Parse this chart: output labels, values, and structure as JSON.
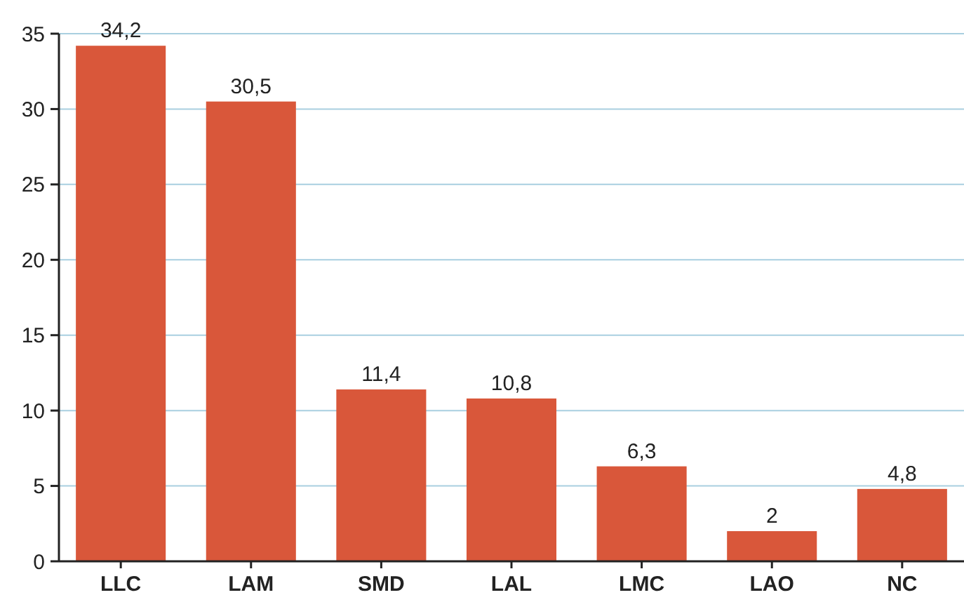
{
  "chart_data": {
    "type": "bar",
    "categories": [
      "LLC",
      "LAM",
      "SMD",
      "LAL",
      "LMC",
      "LAO",
      "NC"
    ],
    "values": [
      34.2,
      30.5,
      11.4,
      10.8,
      6.3,
      2,
      4.8
    ],
    "value_labels": [
      "34,2",
      "30,5",
      "11,4",
      "10,8",
      "6,3",
      "2",
      "4,8"
    ],
    "color": "#d9573a",
    "ylim": [
      0,
      35
    ],
    "yticks": [
      0,
      5,
      10,
      15,
      20,
      25,
      30,
      35
    ],
    "grid": "y"
  }
}
